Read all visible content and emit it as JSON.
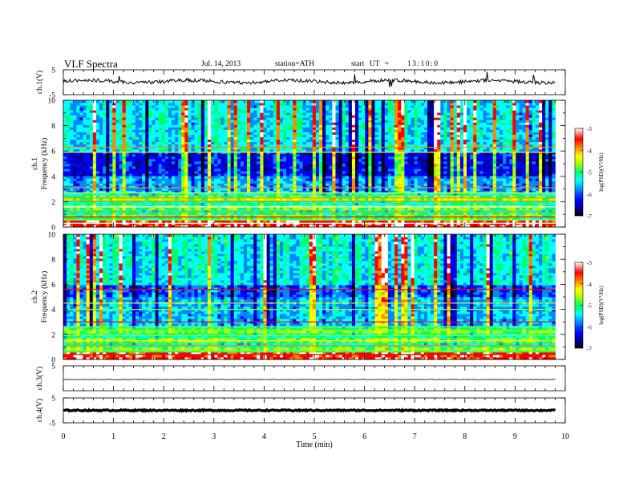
{
  "header": {
    "title": "VLF Spectra",
    "date": "Jul. 14, 2013",
    "station": "station=ATH",
    "start_label": "start UT = ",
    "start_time": "13:10:0"
  },
  "chart_data": [
    {
      "type": "line",
      "panel": "ch1-waveform",
      "ylabel": "ch.1(V)",
      "ylim": [
        -5,
        5
      ],
      "yticks": [
        "5",
        "-5"
      ],
      "xlim": [
        0,
        10
      ],
      "series": [
        {
          "x_range": [
            0,
            9.8
          ],
          "y_level": 0.3,
          "noise": "high"
        }
      ]
    },
    {
      "type": "heatmap",
      "panel": "ch1-spectrogram",
      "ylabel_channel": "ch.1",
      "ylabel": "Frequency (kHz)",
      "yticks": [
        "0",
        "2",
        "4",
        "6",
        "8",
        "10"
      ],
      "ylim": [
        0,
        10
      ],
      "xlim": [
        0,
        10
      ],
      "data_x_range": [
        0,
        9.8
      ],
      "colorbar": {
        "label": "log(PSD)(V²/Hz)",
        "ticks": [
          "-3",
          "-4",
          "-5",
          "-6",
          "-7"
        ],
        "range": [
          -7,
          -3
        ]
      }
    },
    {
      "type": "heatmap",
      "panel": "ch2-spectrogram",
      "ylabel_channel": "ch.2",
      "ylabel": "Frequency (kHz)",
      "yticks": [
        "0",
        "2",
        "4",
        "6",
        "8",
        "10"
      ],
      "ylim": [
        0,
        10
      ],
      "xlim": [
        0,
        10
      ],
      "data_x_range": [
        0,
        9.8
      ],
      "colorbar": {
        "label": "log(PSD)(V²/Hz)",
        "ticks": [
          "-3",
          "-4",
          "-5",
          "-6",
          "-7"
        ],
        "range": [
          -7,
          -3
        ]
      }
    },
    {
      "type": "line",
      "panel": "ch3-waveform",
      "ylabel": "ch.3(V)",
      "ylim": [
        -5,
        5
      ],
      "yticks": [
        "5"
      ],
      "xlim": [
        0,
        10
      ],
      "series": [
        {
          "x_range": [
            0,
            9.8
          ],
          "y_level": -0.5,
          "noise": "low"
        }
      ]
    },
    {
      "type": "line",
      "panel": "ch4-waveform",
      "ylabel": "ch.4(V)",
      "ylim": [
        -5,
        5
      ],
      "yticks": [
        "5",
        "-5"
      ],
      "xlim": [
        0,
        10
      ],
      "series": [
        {
          "x_range": [
            0,
            9.8
          ],
          "y_level": 0.0,
          "noise": "thick"
        }
      ]
    }
  ],
  "xaxis": {
    "label": "Time (min)",
    "ticks": [
      "0",
      "1",
      "2",
      "3",
      "4",
      "5",
      "6",
      "7",
      "8",
      "9",
      "10"
    ]
  },
  "colors": {
    "colormap": [
      "#000000",
      "#00008b",
      "#0000ff",
      "#0088ff",
      "#00ffff",
      "#00ff66",
      "#aaff00",
      "#ffff00",
      "#ff8800",
      "#ff0000",
      "#ffffff"
    ]
  }
}
